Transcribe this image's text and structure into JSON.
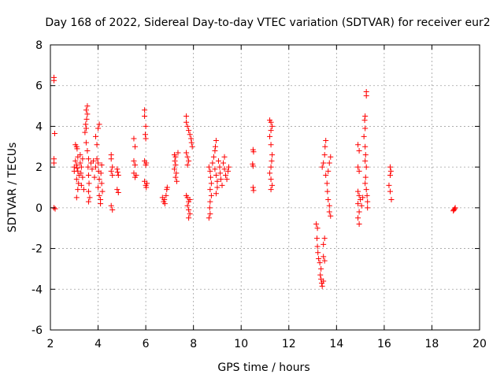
{
  "chart_data": {
    "type": "scatter",
    "title": "Day 168 of 2022, Sidereal Day-to-day VTEC variation (SDTVAR) for receiver eur2",
    "xlabel": "GPS time / hours",
    "ylabel": "SDTVAR / TECUs",
    "xlim": [
      2,
      20
    ],
    "ylim": [
      -6,
      8
    ],
    "x_ticks": [
      "2",
      "4",
      "6",
      "8",
      "10",
      "12",
      "14",
      "16",
      "18",
      "20"
    ],
    "y_ticks": [
      "-6",
      "-4",
      "-2",
      "0",
      "2",
      "4",
      "6",
      "8"
    ],
    "grid": true,
    "marker": "+",
    "marker_color": "#ff0000",
    "series": [
      {
        "name": "eur2",
        "points": [
          [
            2.15,
            6.4
          ],
          [
            2.15,
            6.25
          ],
          [
            2.18,
            3.65
          ],
          [
            2.15,
            2.4
          ],
          [
            2.15,
            2.2
          ],
          [
            2.15,
            0.0
          ],
          [
            2.2,
            -0.05
          ],
          [
            3.05,
            3.1
          ],
          [
            3.1,
            3.0
          ],
          [
            3.12,
            2.9
          ],
          [
            3.15,
            2.5
          ],
          [
            3.05,
            2.3
          ],
          [
            3.1,
            2.1
          ],
          [
            3.12,
            1.95
          ],
          [
            3.15,
            1.8
          ],
          [
            3.2,
            1.6
          ],
          [
            3.1,
            1.4
          ],
          [
            3.18,
            1.2
          ],
          [
            3.15,
            0.9
          ],
          [
            3.1,
            0.5
          ],
          [
            3.25,
            2.6
          ],
          [
            3.25,
            2.2
          ],
          [
            3.3,
            2.0
          ],
          [
            3.28,
            1.7
          ],
          [
            3.35,
            1.5
          ],
          [
            3.3,
            1.1
          ],
          [
            3.4,
            0.9
          ],
          [
            3.35,
            2.4
          ],
          [
            3.45,
            3.7
          ],
          [
            3.5,
            3.9
          ],
          [
            3.48,
            4.1
          ],
          [
            3.52,
            4.35
          ],
          [
            3.55,
            4.6
          ],
          [
            3.5,
            4.8
          ],
          [
            3.55,
            5.0
          ],
          [
            3.5,
            3.2
          ],
          [
            3.55,
            2.8
          ],
          [
            3.6,
            2.4
          ],
          [
            3.58,
            2.0
          ],
          [
            3.6,
            1.6
          ],
          [
            3.62,
            1.2
          ],
          [
            3.6,
            0.8
          ],
          [
            3.65,
            0.5
          ],
          [
            3.6,
            0.3
          ],
          [
            3.7,
            2.2
          ],
          [
            3.75,
            1.9
          ],
          [
            3.8,
            2.3
          ],
          [
            3.85,
            1.5
          ],
          [
            3.9,
            2.0
          ],
          [
            3.95,
            2.4
          ],
          [
            4.0,
            2.2
          ],
          [
            4.02,
            1.8
          ],
          [
            4.05,
            1.4
          ],
          [
            4.0,
            1.0
          ],
          [
            4.05,
            0.6
          ],
          [
            4.1,
            0.4
          ],
          [
            4.1,
            0.2
          ],
          [
            4.15,
            2.1
          ],
          [
            4.12,
            1.7
          ],
          [
            4.15,
            1.2
          ],
          [
            4.18,
            0.8
          ],
          [
            3.9,
            3.5
          ],
          [
            3.95,
            3.1
          ],
          [
            4.0,
            3.9
          ],
          [
            4.05,
            4.1
          ],
          [
            3.0,
            2.0
          ],
          [
            3.0,
            1.8
          ],
          [
            4.55,
            2.6
          ],
          [
            4.55,
            2.4
          ],
          [
            4.6,
            2.0
          ],
          [
            4.55,
            1.8
          ],
          [
            4.6,
            1.6
          ],
          [
            4.55,
            0.1
          ],
          [
            4.6,
            -0.1
          ],
          [
            4.8,
            1.9
          ],
          [
            4.82,
            1.75
          ],
          [
            4.85,
            1.6
          ],
          [
            4.8,
            0.9
          ],
          [
            4.85,
            0.75
          ],
          [
            5.5,
            3.4
          ],
          [
            5.55,
            3.0
          ],
          [
            5.5,
            2.3
          ],
          [
            5.55,
            2.1
          ],
          [
            5.5,
            1.7
          ],
          [
            5.55,
            1.5
          ],
          [
            5.6,
            1.6
          ],
          [
            5.95,
            4.8
          ],
          [
            5.95,
            4.5
          ],
          [
            6.0,
            4.0
          ],
          [
            5.98,
            3.6
          ],
          [
            6.0,
            3.4
          ],
          [
            5.95,
            2.3
          ],
          [
            6.0,
            2.1
          ],
          [
            6.02,
            2.2
          ],
          [
            5.95,
            1.3
          ],
          [
            6.0,
            1.1
          ],
          [
            6.02,
            1.0
          ],
          [
            6.05,
            1.2
          ],
          [
            6.7,
            0.5
          ],
          [
            6.75,
            0.3
          ],
          [
            6.8,
            0.2
          ],
          [
            6.78,
            0.4
          ],
          [
            6.85,
            0.6
          ],
          [
            6.88,
            0.9
          ],
          [
            6.9,
            1.0
          ],
          [
            7.2,
            2.6
          ],
          [
            7.25,
            2.5
          ],
          [
            7.22,
            2.3
          ],
          [
            7.25,
            2.1
          ],
          [
            7.2,
            1.9
          ],
          [
            7.28,
            1.7
          ],
          [
            7.25,
            1.5
          ],
          [
            7.3,
            1.3
          ],
          [
            7.35,
            2.7
          ],
          [
            7.7,
            4.5
          ],
          [
            7.7,
            4.2
          ],
          [
            7.75,
            4.0
          ],
          [
            7.8,
            3.8
          ],
          [
            7.85,
            3.6
          ],
          [
            7.9,
            3.4
          ],
          [
            7.92,
            3.2
          ],
          [
            7.95,
            3.0
          ],
          [
            7.7,
            2.7
          ],
          [
            7.75,
            2.5
          ],
          [
            7.8,
            2.3
          ],
          [
            7.75,
            2.1
          ],
          [
            7.7,
            0.6
          ],
          [
            7.75,
            0.5
          ],
          [
            7.8,
            0.3
          ],
          [
            7.75,
            0.1
          ],
          [
            7.8,
            -0.1
          ],
          [
            7.85,
            -0.3
          ],
          [
            7.8,
            -0.5
          ],
          [
            7.85,
            0.4
          ],
          [
            8.65,
            2.0
          ],
          [
            8.7,
            1.8
          ],
          [
            8.72,
            1.5
          ],
          [
            8.75,
            1.2
          ],
          [
            8.7,
            0.9
          ],
          [
            8.75,
            0.6
          ],
          [
            8.7,
            0.3
          ],
          [
            8.68,
            0.0
          ],
          [
            8.7,
            -0.3
          ],
          [
            8.65,
            -0.5
          ],
          [
            8.8,
            2.2
          ],
          [
            8.85,
            2.5
          ],
          [
            8.9,
            2.8
          ],
          [
            8.92,
            3.0
          ],
          [
            8.95,
            3.3
          ],
          [
            8.9,
            1.9
          ],
          [
            8.95,
            1.6
          ],
          [
            9.0,
            1.3
          ],
          [
            9.0,
            1.0
          ],
          [
            9.05,
            2.3
          ],
          [
            9.1,
            2.0
          ],
          [
            9.12,
            1.7
          ],
          [
            9.15,
            1.4
          ],
          [
            9.2,
            1.1
          ],
          [
            9.25,
            2.2
          ],
          [
            9.3,
            1.9
          ],
          [
            9.35,
            1.6
          ],
          [
            9.4,
            1.4
          ],
          [
            9.45,
            1.8
          ],
          [
            9.48,
            2.0
          ],
          [
            9.3,
            2.5
          ],
          [
            8.95,
            0.7
          ],
          [
            10.5,
            2.85
          ],
          [
            10.52,
            2.75
          ],
          [
            10.48,
            2.15
          ],
          [
            10.5,
            2.05
          ],
          [
            10.5,
            1.0
          ],
          [
            10.52,
            0.85
          ],
          [
            11.2,
            4.3
          ],
          [
            11.25,
            4.2
          ],
          [
            11.3,
            4.0
          ],
          [
            11.25,
            3.8
          ],
          [
            11.2,
            3.5
          ],
          [
            11.25,
            3.1
          ],
          [
            11.3,
            2.6
          ],
          [
            11.28,
            2.3
          ],
          [
            11.25,
            2.0
          ],
          [
            11.2,
            1.7
          ],
          [
            11.25,
            1.4
          ],
          [
            11.3,
            1.1
          ],
          [
            11.25,
            0.9
          ],
          [
            13.15,
            -0.8
          ],
          [
            13.2,
            -1.0
          ],
          [
            13.18,
            -1.5
          ],
          [
            13.2,
            -1.9
          ],
          [
            13.22,
            -2.2
          ],
          [
            13.25,
            -2.5
          ],
          [
            13.3,
            -2.7
          ],
          [
            13.35,
            -3.0
          ],
          [
            13.32,
            -3.3
          ],
          [
            13.35,
            -3.5
          ],
          [
            13.38,
            -3.7
          ],
          [
            13.4,
            -3.85
          ],
          [
            13.45,
            -3.6
          ],
          [
            13.45,
            -2.4
          ],
          [
            13.5,
            -2.6
          ],
          [
            13.45,
            -1.8
          ],
          [
            13.5,
            -1.5
          ],
          [
            13.4,
            2.0
          ],
          [
            13.45,
            2.2
          ],
          [
            13.5,
            2.6
          ],
          [
            13.52,
            3.0
          ],
          [
            13.55,
            3.3
          ],
          [
            13.55,
            1.6
          ],
          [
            13.6,
            1.2
          ],
          [
            13.62,
            0.8
          ],
          [
            13.65,
            0.4
          ],
          [
            13.7,
            0.1
          ],
          [
            13.7,
            -0.2
          ],
          [
            13.75,
            -0.4
          ],
          [
            13.65,
            1.8
          ],
          [
            13.7,
            2.2
          ],
          [
            13.75,
            2.5
          ],
          [
            14.9,
            3.1
          ],
          [
            14.95,
            2.8
          ],
          [
            14.9,
            2.0
          ],
          [
            14.95,
            1.8
          ],
          [
            14.9,
            0.8
          ],
          [
            14.95,
            0.6
          ],
          [
            14.9,
            0.2
          ],
          [
            14.95,
            -0.2
          ],
          [
            14.9,
            -0.5
          ],
          [
            14.95,
            -0.8
          ],
          [
            15.0,
            0.4
          ],
          [
            15.05,
            0.1
          ],
          [
            15.1,
            0.5
          ],
          [
            15.15,
            3.5
          ],
          [
            15.2,
            3.9
          ],
          [
            15.18,
            4.3
          ],
          [
            15.2,
            4.5
          ],
          [
            15.25,
            5.5
          ],
          [
            15.25,
            5.7
          ],
          [
            15.2,
            3.0
          ],
          [
            15.22,
            2.6
          ],
          [
            15.2,
            2.3
          ],
          [
            15.25,
            2.0
          ],
          [
            15.22,
            1.5
          ],
          [
            15.2,
            1.2
          ],
          [
            15.25,
            0.9
          ],
          [
            15.28,
            0.6
          ],
          [
            15.3,
            0.3
          ],
          [
            15.3,
            0.0
          ],
          [
            16.25,
            2.0
          ],
          [
            16.28,
            1.8
          ],
          [
            16.25,
            1.6
          ],
          [
            16.2,
            1.1
          ],
          [
            16.25,
            0.8
          ],
          [
            16.3,
            0.4
          ],
          [
            18.9,
            -0.15
          ],
          [
            18.95,
            -0.05
          ],
          [
            18.98,
            0.0
          ],
          [
            18.92,
            -0.1
          ]
        ]
      }
    ]
  }
}
